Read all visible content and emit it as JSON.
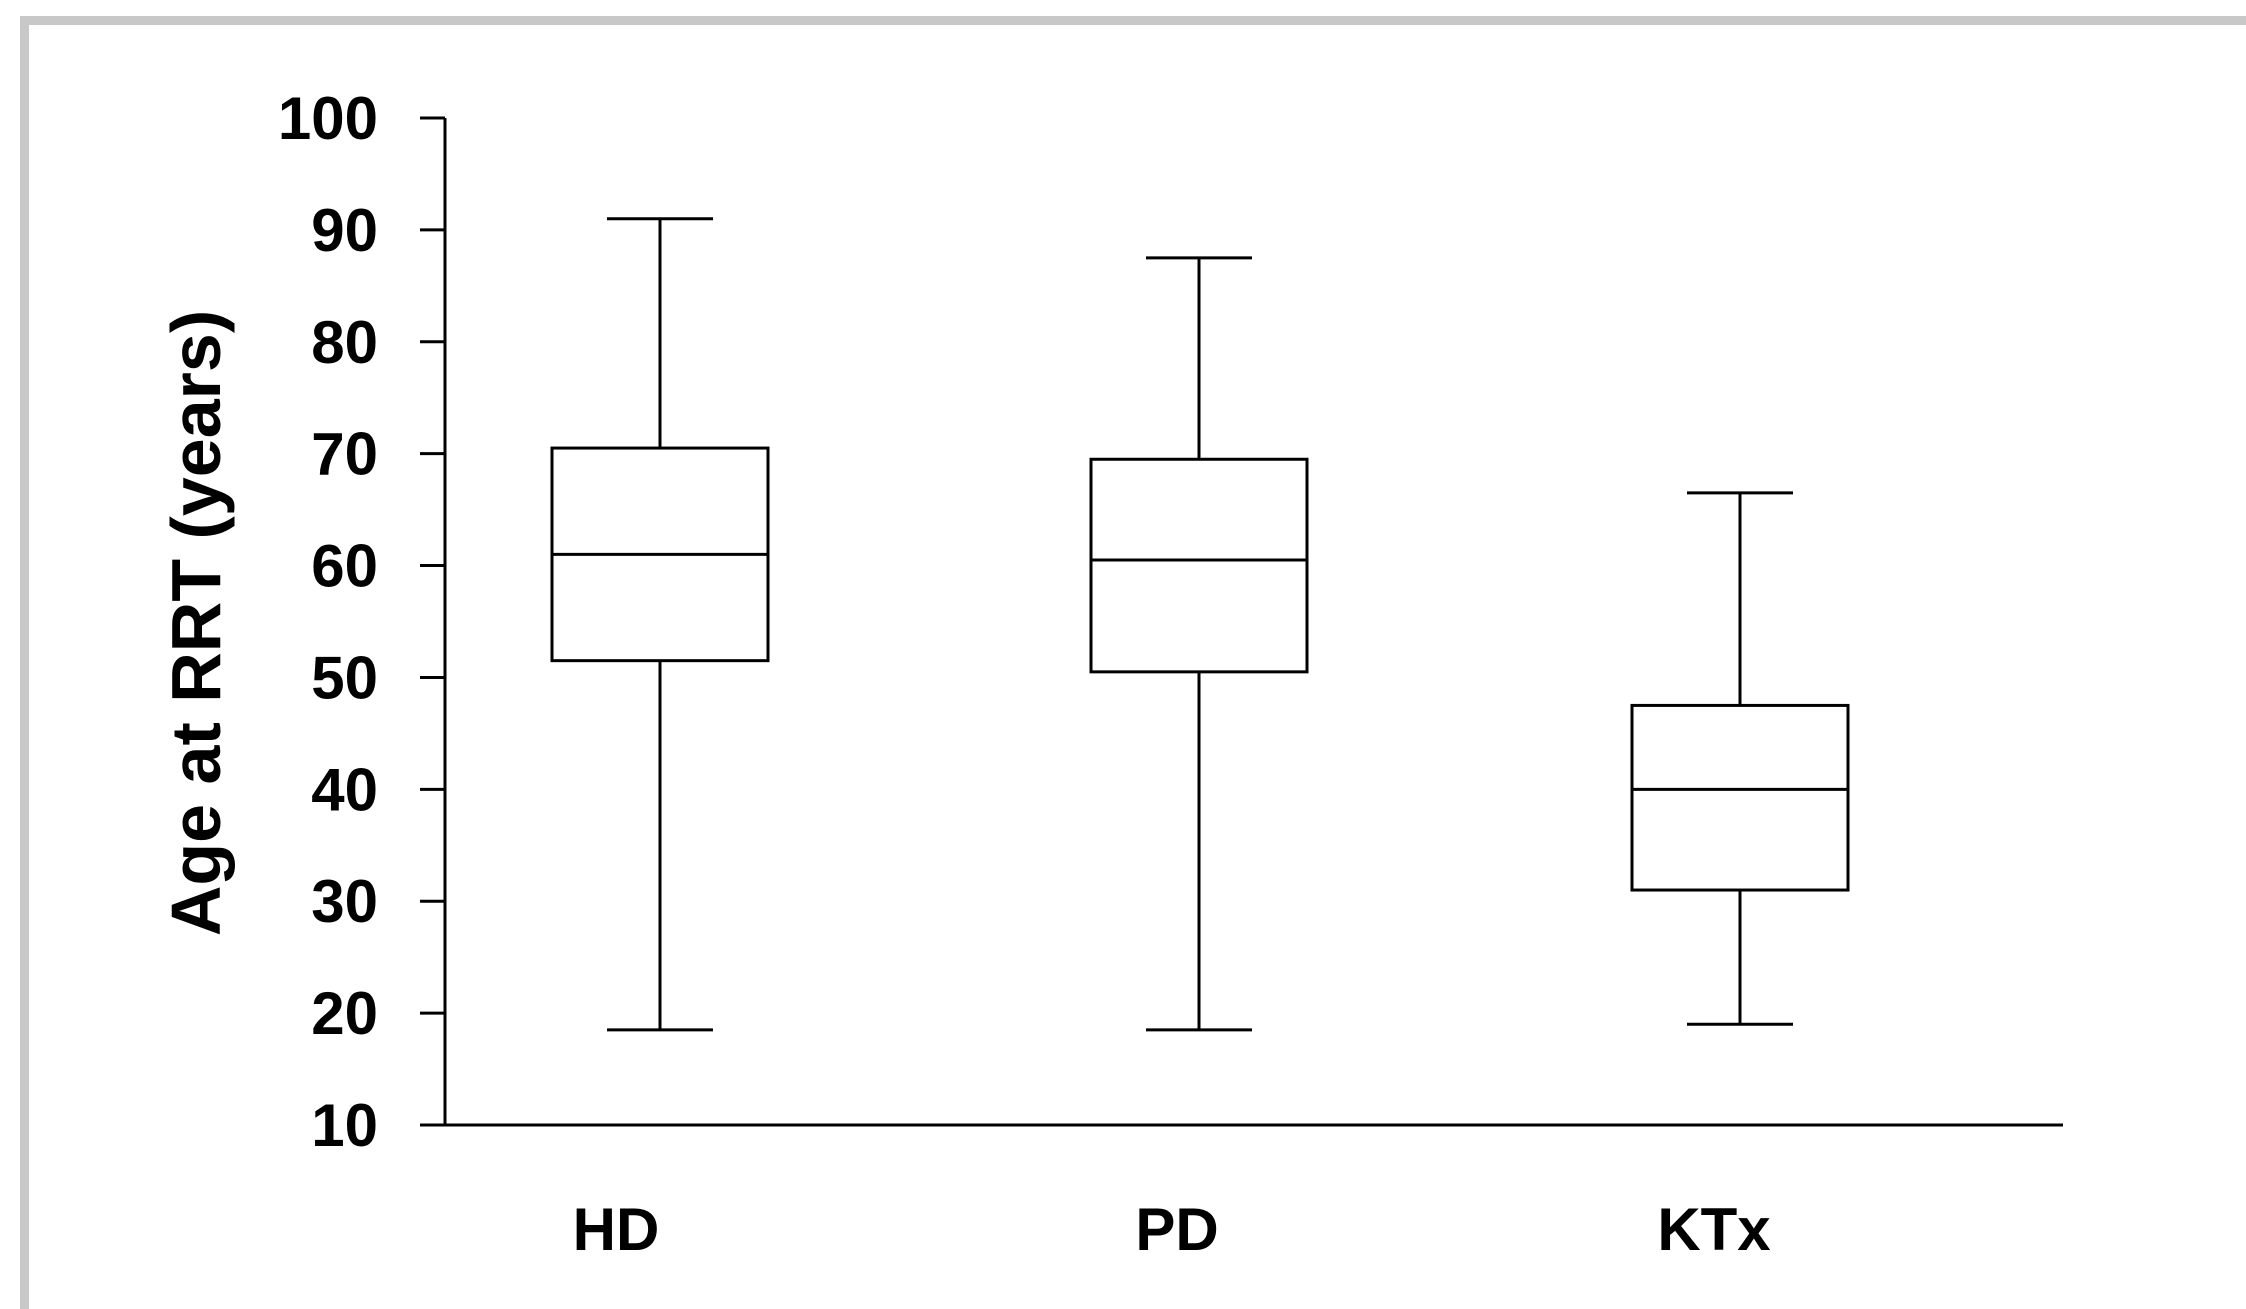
{
  "chart_data": {
    "type": "box",
    "title": "",
    "xlabel": "",
    "ylabel": "Age at RRT (years)",
    "ylim": [
      10,
      100
    ],
    "yticks": [
      10,
      20,
      30,
      40,
      50,
      60,
      70,
      80,
      90,
      100
    ],
    "categories": [
      "HD",
      "PD",
      "KTx"
    ],
    "series": [
      {
        "category": "HD",
        "min": 18.5,
        "q1": 51.5,
        "median": 61,
        "q3": 70.5,
        "max": 91
      },
      {
        "category": "PD",
        "min": 18.5,
        "q1": 50.5,
        "median": 60.5,
        "q3": 69.5,
        "max": 87.5
      },
      {
        "category": "KTx",
        "min": 19,
        "q1": 31,
        "median": 40,
        "q3": 47.5,
        "max": 66.5
      }
    ],
    "grid": false,
    "legend": "none",
    "colors": {
      "stroke": "#000000",
      "box_fill": "#ffffff",
      "frame": "#c8c8c8"
    }
  }
}
